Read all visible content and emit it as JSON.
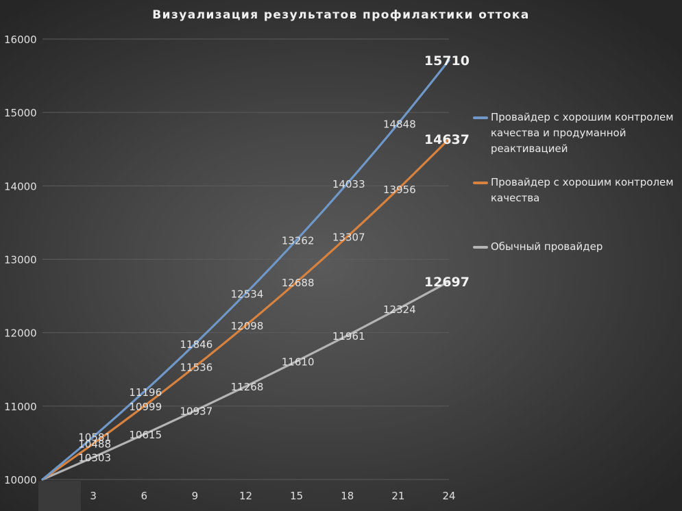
{
  "colors": {
    "blue": "#6f98c8",
    "orange": "#d7823f",
    "gray": "#b4b4b4",
    "grid": "#5c5c5c"
  },
  "chart_data": {
    "type": "line",
    "title": "Визуализация результатов профилактики оттока",
    "x": [
      0,
      3,
      6,
      9,
      12,
      15,
      18,
      21,
      24
    ],
    "x_tick_labels": [
      "",
      "3",
      "6",
      "9",
      "12",
      "15",
      "18",
      "21",
      "24"
    ],
    "ylim": [
      10000,
      16000
    ],
    "y_ticks": [
      10000,
      11000,
      12000,
      13000,
      14000,
      15000,
      16000
    ],
    "grid": true,
    "legend_position": "right",
    "series": [
      {
        "name": "Провайдер с хорошим контролем качества и продуманной реактивацией",
        "color": "#6f98c8",
        "values": [
          10000,
          10581,
          11196,
          11846,
          12534,
          13262,
          14033,
          14848,
          15710
        ],
        "labels": [
          "",
          "10581",
          "11196",
          "11846",
          "12534",
          "13262",
          "14033",
          "14848",
          "15710"
        ]
      },
      {
        "name": "Провайдер с хорошим контролем качества",
        "color": "#d7823f",
        "values": [
          10000,
          10488,
          10999,
          11536,
          12098,
          12688,
          13307,
          13956,
          14637
        ],
        "labels": [
          "",
          "10488",
          "10999",
          "11536",
          "12098",
          "12688",
          "13307",
          "13956",
          "14637"
        ]
      },
      {
        "name": "Обычный провайдер",
        "color": "#b4b4b4",
        "values": [
          10000,
          10303,
          10615,
          10937,
          11268,
          11610,
          11961,
          12324,
          12697
        ],
        "labels": [
          "",
          "10303",
          "10615",
          "10937",
          "11268",
          "11610",
          "11961",
          "12324",
          "12697"
        ]
      }
    ]
  }
}
